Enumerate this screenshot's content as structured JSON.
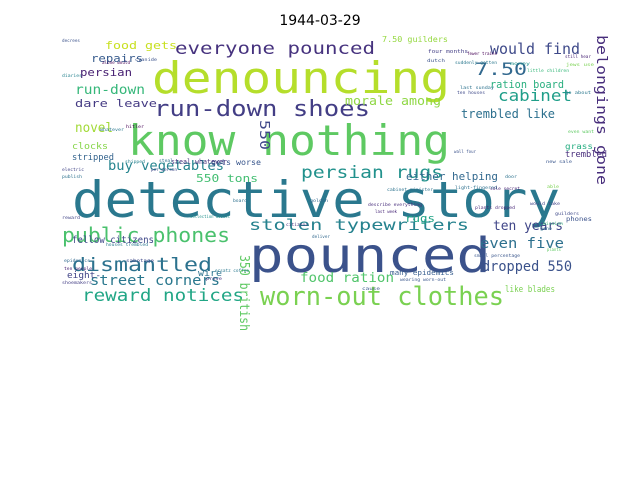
{
  "title": "1944-03-29",
  "words": [
    {
      "text": "denouncing",
      "color": "#b5de2b"
    },
    {
      "text": "know nothing",
      "color": "#5ec962"
    },
    {
      "text": "detective story",
      "color": "#2a788e"
    },
    {
      "text": "pounced",
      "color": "#3b528b"
    },
    {
      "text": "worn-out clothes",
      "color": "#7ad151"
    },
    {
      "text": "run-down shoes",
      "color": "#433e85"
    },
    {
      "text": "everyone pounced",
      "color": "#46327e"
    },
    {
      "text": "persian rugs",
      "color": "#21918c"
    },
    {
      "text": "public phones",
      "color": "#4ac16d"
    },
    {
      "text": "stolen typewriters",
      "color": "#26828e"
    },
    {
      "text": "dismantled",
      "color": "#2c728e"
    },
    {
      "text": "reward notices",
      "color": "#21a685"
    },
    {
      "text": "would find",
      "color": "#3e4989"
    },
    {
      "text": "7.50",
      "color": "#31688e"
    },
    {
      "text": "cabinet",
      "color": "#1f9e89"
    },
    {
      "text": "belongings gone",
      "color": "#472d7b"
    },
    {
      "text": "buy vegetables",
      "color": "#25848e"
    },
    {
      "text": "morale among",
      "color": "#8fd744"
    },
    {
      "text": "trembled like",
      "color": "#2d708e"
    },
    {
      "text": "run-down",
      "color": "#35b779"
    },
    {
      "text": "dare leave",
      "color": "#443a83"
    },
    {
      "text": "novel",
      "color": "#a2da37"
    },
    {
      "text": "food gets",
      "color": "#c8e020"
    },
    {
      "text": "repairs",
      "color": "#375b8d"
    },
    {
      "text": "persian",
      "color": "#482173"
    },
    {
      "text": "ration board",
      "color": "#29af7f"
    },
    {
      "text": "either helping",
      "color": "#31688e"
    },
    {
      "text": "ten years",
      "color": "#404688"
    },
    {
      "text": "even five",
      "color": "#2d708e"
    },
    {
      "text": "dropped 550",
      "color": "#3b528b"
    },
    {
      "text": "street corners",
      "color": "#2a788e"
    },
    {
      "text": "food ration",
      "color": "#50c46a"
    },
    {
      "text": "550 tons",
      "color": "#42be71"
    },
    {
      "text": "550",
      "color": "#3f4788"
    },
    {
      "text": "350 british",
      "color": "#5ec962"
    },
    {
      "text": "rugs",
      "color": "#20a486"
    },
    {
      "text": "clocks",
      "color": "#86d549"
    },
    {
      "text": "stripped",
      "color": "#33638d"
    },
    {
      "text": "fellow citizens",
      "color": "#3f4788"
    },
    {
      "text": "wire",
      "color": "#2c728e"
    },
    {
      "text": "eight-",
      "color": "#414487"
    },
    {
      "text": "many epidemics",
      "color": "#365c8d"
    },
    {
      "text": "like blades",
      "color": "#7ad151"
    },
    {
      "text": "trembled",
      "color": "#472d7b"
    },
    {
      "text": "gets worse",
      "color": "#39568c"
    },
    {
      "text": "steal whatever",
      "color": "#46337e"
    },
    {
      "text": "7.50 guilders",
      "color": "#95d840"
    },
    {
      "text": "grass",
      "color": "#26ad81"
    },
    {
      "text": "phones",
      "color": "#3b528b"
    },
    {
      "text": "four months",
      "color": "#433e85"
    },
    {
      "text": "suddenly gotten",
      "color": "#2a788e"
    },
    {
      "text": "last sunday",
      "color": "#2c728e"
    },
    {
      "text": "ten houses",
      "color": "#3e4989"
    },
    {
      "text": "little children",
      "color": "#35b779"
    },
    {
      "text": "still hear",
      "color": "#482475"
    },
    {
      "text": "even want",
      "color": "#5ec962"
    },
    {
      "text": "jews use",
      "color": "#7ad151"
    },
    {
      "text": "fewer trains",
      "color": "#440154"
    },
    {
      "text": "go about",
      "color": "#2a788e"
    },
    {
      "text": "cabinet minister",
      "color": "#2c728e"
    },
    {
      "text": "describe everything",
      "color": "#472d7b"
    },
    {
      "text": "small percentage",
      "color": "#39568c"
    },
    {
      "text": "light-fingered",
      "color": "#2d708e"
    },
    {
      "text": "plants dropped",
      "color": "#482878"
    },
    {
      "text": "would take",
      "color": "#414487"
    },
    {
      "text": "dutch",
      "color": "#3b528b"
    },
    {
      "text": "money",
      "color": "#21918c"
    },
    {
      "text": "houses trembled",
      "color": "#2a788e"
    },
    {
      "text": "sabotage",
      "color": "#3e4989"
    },
    {
      "text": "ten people",
      "color": "#482173"
    },
    {
      "text": "steal",
      "color": "#2d708e"
    },
    {
      "text": "shipped",
      "color": "#26828e"
    },
    {
      "text": "alone would",
      "color": "#440154"
    },
    {
      "text": "wearing worn-out",
      "color": "#39568c"
    },
    {
      "text": "per person",
      "color": "#3e4989"
    },
    {
      "text": "electric",
      "color": "#414487"
    },
    {
      "text": "publish",
      "color": "#2c728e"
    },
    {
      "text": "diaries",
      "color": "#26828e"
    },
    {
      "text": "wall four",
      "color": "#3b528b"
    },
    {
      "text": "last week",
      "color": "#482878"
    },
    {
      "text": "gone",
      "color": "#2d708e"
    },
    {
      "text": "plants",
      "color": "#5ec962"
    },
    {
      "text": "golden",
      "color": "#31688e"
    },
    {
      "text": "citizens",
      "color": "#46327e"
    },
    {
      "text": "ersatz coffee",
      "color": "#2a788e"
    },
    {
      "text": "shoemakers",
      "color": "#433e85"
    },
    {
      "text": "collection assist",
      "color": "#21918c"
    },
    {
      "text": "epidemics",
      "color": "#31688e"
    },
    {
      "text": "cyanide",
      "color": "#3b528b"
    },
    {
      "text": "hitler",
      "color": "#440154"
    },
    {
      "text": "board",
      "color": "#2d708e"
    },
    {
      "text": "new sale",
      "color": "#39568c"
    },
    {
      "text": "guilders",
      "color": "#3e4989"
    },
    {
      "text": "door",
      "color": "#2c728e"
    },
    {
      "text": "decrees",
      "color": "#3b528b"
    },
    {
      "text": "reward",
      "color": "#414487"
    },
    {
      "text": "sole secret",
      "color": "#482475"
    },
    {
      "text": "able",
      "color": "#7ad151"
    },
    {
      "text": "whatever",
      "color": "#2a788e"
    },
    {
      "text": "mission",
      "color": "#35b779"
    },
    {
      "text": "prove",
      "color": "#46327e"
    },
    {
      "text": "deliver",
      "color": "#31688e"
    },
    {
      "text": "cause",
      "color": "#39568c"
    }
  ]
}
